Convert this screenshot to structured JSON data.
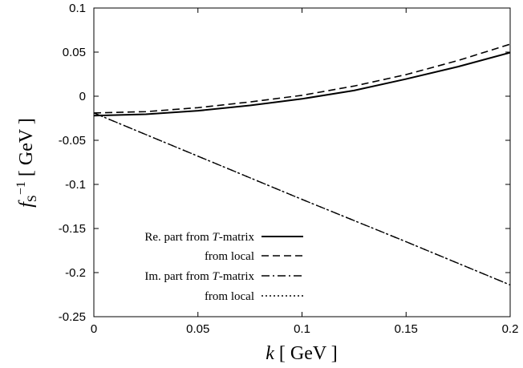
{
  "chart_data": {
    "type": "line",
    "xlabel": "k  [ GeV ]",
    "ylabel": "f_S^{-1}  [ GeV ]",
    "xlim": [
      0,
      0.2
    ],
    "ylim": [
      -0.25,
      0.1
    ],
    "x_ticks": [
      "0",
      "0.05",
      "0.1",
      "0.15",
      "0.2"
    ],
    "y_ticks": [
      "0.1",
      "0.05",
      "0",
      "-0.05",
      "-0.1",
      "-0.15",
      "-0.2",
      "-0.25"
    ],
    "grid": false,
    "legend_position": "bottom-left",
    "series": [
      {
        "name": "Re. part from T-matrix",
        "style": "solid",
        "x": [
          0,
          0.025,
          0.05,
          0.075,
          0.1,
          0.125,
          0.15,
          0.175,
          0.2
        ],
        "y": [
          -0.022,
          -0.0205,
          -0.0165,
          -0.0105,
          -0.003,
          0.0065,
          0.0195,
          0.0335,
          0.0495
        ]
      },
      {
        "name": "from local",
        "style": "dashed",
        "x": [
          0,
          0.025,
          0.05,
          0.075,
          0.1,
          0.125,
          0.15,
          0.175,
          0.2
        ],
        "y": [
          -0.019,
          -0.0175,
          -0.013,
          -0.0065,
          0.001,
          0.0115,
          0.0245,
          0.0405,
          0.059
        ]
      },
      {
        "name": "Im. part from T-matrix",
        "style": "dash-dot",
        "x": [
          0,
          0.05,
          0.1,
          0.15,
          0.2
        ],
        "y": [
          -0.019,
          -0.068,
          -0.117,
          -0.165,
          -0.214
        ]
      },
      {
        "name": "from local",
        "style": "dotted",
        "x": [
          0,
          0.05,
          0.1,
          0.15,
          0.2
        ],
        "y": [
          -0.019,
          -0.068,
          -0.117,
          -0.165,
          -0.214
        ]
      }
    ]
  },
  "legend": [
    {
      "pre": "Re. part from ",
      "italic": "T",
      "post": "-matrix"
    },
    {
      "pre": "from local",
      "italic": "",
      "post": ""
    },
    {
      "pre": "Im. part from ",
      "italic": "T",
      "post": "-matrix"
    },
    {
      "pre": "from local",
      "italic": "",
      "post": ""
    }
  ],
  "axis_titles": {
    "x": {
      "var": "k",
      "unit": " [ GeV ]"
    },
    "y": {
      "var": "f",
      "sub": "S",
      "sup": "−1",
      "unit": " [ GeV ]"
    }
  }
}
